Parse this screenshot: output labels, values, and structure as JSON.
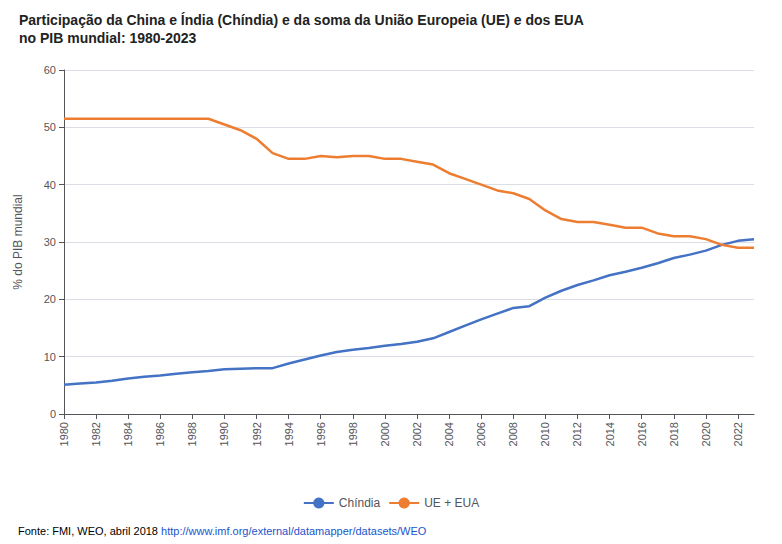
{
  "chart_data": {
    "type": "line",
    "title": "Participação da China e Índia (Chíndia) e da soma da União Europeia (UE) e dos EUA",
    "subtitle": "no PIB mundial: 1980-2023",
    "y_label": "% do PIB mundial",
    "annotations": [
      "Fonte: FMI, WEO, abril 2018",
      "http://www.imf.org/external/datamapper/datasets/WEO"
    ],
    "x": [
      1980,
      1981,
      1982,
      1983,
      1984,
      1985,
      1986,
      1987,
      1988,
      1989,
      1990,
      1991,
      1992,
      1993,
      1994,
      1995,
      1996,
      1997,
      1998,
      1999,
      2000,
      2001,
      2002,
      2003,
      2004,
      2005,
      2006,
      2007,
      2008,
      2009,
      2010,
      2011,
      2012,
      2013,
      2014,
      2015,
      2016,
      2017,
      2018,
      2019,
      2020,
      2021,
      2022,
      2023
    ],
    "series": [
      {
        "name": "Chíndia",
        "color": "#4472c4",
        "values": [
          5.1,
          5.3,
          5.5,
          5.8,
          6.2,
          6.5,
          6.7,
          7.0,
          7.3,
          7.5,
          7.8,
          7.9,
          8.0,
          8.0,
          8.8,
          9.5,
          10.2,
          10.8,
          11.2,
          11.5,
          11.9,
          12.2,
          12.6,
          13.2,
          14.3,
          15.4,
          16.5,
          17.5,
          18.5,
          18.8,
          20.3,
          21.5,
          22.5,
          23.3,
          24.2,
          24.8,
          25.5,
          26.3,
          27.2,
          27.8,
          28.5,
          29.5,
          30.2,
          30.5
        ]
      },
      {
        "name": "UE + EUA",
        "color": "#ed7d31",
        "values": [
          51.5,
          51.5,
          51.5,
          51.5,
          51.5,
          51.5,
          51.5,
          51.5,
          51.5,
          51.5,
          50.5,
          49.5,
          48.0,
          45.5,
          44.5,
          44.5,
          45.0,
          44.8,
          45.0,
          45.0,
          44.5,
          44.5,
          44.0,
          43.5,
          42.0,
          41.0,
          40.0,
          39.0,
          38.5,
          37.5,
          35.5,
          34.0,
          33.5,
          33.5,
          33.0,
          32.5,
          32.5,
          31.5,
          31.0,
          31.0,
          30.5,
          29.5,
          29.0,
          29.0
        ]
      }
    ],
    "xlim": [
      1980,
      2023
    ],
    "xticks": [
      1980,
      1982,
      1984,
      1986,
      1988,
      1990,
      1992,
      1994,
      1996,
      1998,
      2000,
      2002,
      2004,
      2006,
      2008,
      2010,
      2012,
      2014,
      2016,
      2018,
      2020,
      2022
    ],
    "ylim": [
      0,
      60
    ],
    "yticks": [
      0,
      10,
      20,
      30,
      40,
      50,
      60
    ],
    "grid": true,
    "legend": "bottom"
  }
}
